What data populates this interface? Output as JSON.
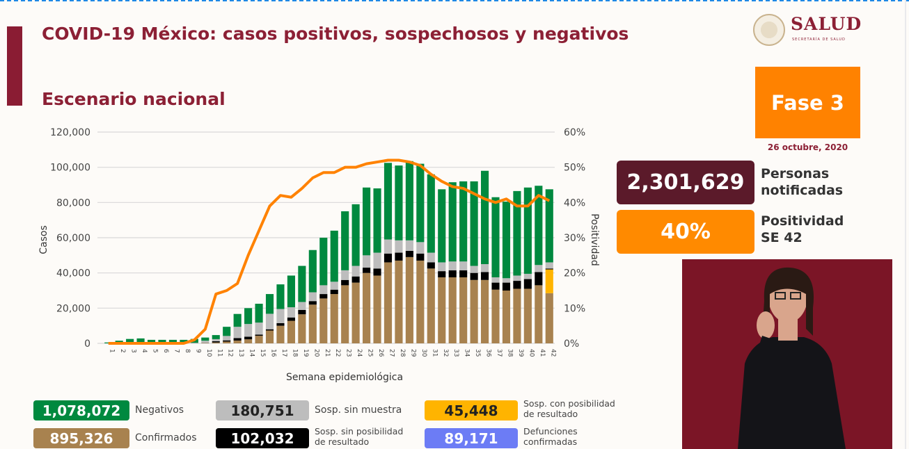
{
  "header": {
    "title": "COVID-19 México: casos positivos, sospechosos y negativos",
    "subtitle": "Escenario nacional",
    "logo_text": "SALUD",
    "logo_subtext": "SECRETARÍA DE SALUD"
  },
  "side": {
    "phase": "Fase 3",
    "date": "26 octubre, 2020",
    "notified_value": "2,301,629",
    "notified_label_1": "Personas",
    "notified_label_2": "notificadas",
    "positivity_value": "40%",
    "positivity_label_1": "Positividad",
    "positivity_label_2": "SE 42"
  },
  "legend": [
    {
      "value": "1,078,072",
      "label": "Negativos",
      "color": "#00893f",
      "text_color": "#ffffff"
    },
    {
      "value": "180,751",
      "label": "Sosp. sin muestra",
      "color": "#bdbdbd",
      "text_color": "#222222"
    },
    {
      "value": "45,448",
      "label": "Sosp. con posibilidad de resultado",
      "color": "#ffb400",
      "text_color": "#222222"
    },
    {
      "value": "895,326",
      "label": "Confirmados",
      "color": "#a8824f",
      "text_color": "#ffffff"
    },
    {
      "value": "102,032",
      "label": "Sosp. sin posibilidad de resultado",
      "color": "#000000",
      "text_color": "#ffffff"
    },
    {
      "value": "89,171",
      "label": "Defunciones confirmadas",
      "color": "#6c7cf5",
      "text_color": "#ffffff"
    }
  ],
  "chart_data": {
    "type": "bar",
    "stacked": true,
    "xlabel": "Semana epidemiológica",
    "ylabel": "Casos",
    "y2label": "Positividad",
    "ylim": [
      0,
      120000
    ],
    "y2lim": [
      0,
      60
    ],
    "yticks": [
      "0",
      "20,000",
      "40,000",
      "60,000",
      "80,000",
      "100,000",
      "120,000"
    ],
    "y2ticks": [
      "0%",
      "10%",
      "20%",
      "30%",
      "40%",
      "50%",
      "60%"
    ],
    "grid": true,
    "categories": [
      "1",
      "2",
      "3",
      "4",
      "5",
      "6",
      "7",
      "8",
      "9",
      "10",
      "11",
      "12",
      "13",
      "14",
      "15",
      "16",
      "17",
      "18",
      "19",
      "20",
      "21",
      "22",
      "23",
      "24",
      "25",
      "26",
      "27",
      "28",
      "29",
      "30",
      "31",
      "32",
      "33",
      "34",
      "35",
      "36",
      "37",
      "38",
      "39",
      "40",
      "41",
      "42"
    ],
    "series": [
      {
        "name": "Confirmados",
        "color": "#a8824f",
        "values": [
          0,
          0,
          0,
          0,
          0,
          0,
          0,
          0,
          100,
          200,
          500,
          1000,
          1600,
          2300,
          4300,
          7300,
          10000,
          12800,
          16500,
          22000,
          25500,
          28000,
          33000,
          34500,
          40000,
          38500,
          46000,
          47000,
          49000,
          47000,
          42500,
          37500,
          37500,
          37500,
          36000,
          36000,
          30500,
          30000,
          31000,
          31000,
          33000,
          28500
        ]
      },
      {
        "name": "Sosp. con posibilidad de resultado",
        "color": "#ffb400",
        "values": [
          0,
          0,
          0,
          0,
          0,
          0,
          0,
          0,
          0,
          0,
          0,
          0,
          0,
          0,
          0,
          0,
          0,
          0,
          0,
          0,
          0,
          0,
          0,
          0,
          0,
          0,
          0,
          0,
          0,
          0,
          0,
          0,
          0,
          0,
          0,
          0,
          0,
          0,
          0,
          0,
          0,
          13500
        ]
      },
      {
        "name": "Sosp. sin posibilidad de resultado",
        "color": "#000000",
        "values": [
          0,
          0,
          0,
          0,
          0,
          0,
          0,
          0,
          0,
          100,
          700,
          700,
          1400,
          1500,
          700,
          700,
          1500,
          1900,
          2500,
          2000,
          2500,
          2500,
          3000,
          3500,
          3000,
          4000,
          5000,
          4500,
          3500,
          4000,
          3500,
          3500,
          4000,
          4000,
          4000,
          4500,
          4000,
          4500,
          4500,
          5500,
          7500,
          500
        ]
      },
      {
        "name": "Sosp. sin muestra",
        "color": "#bdbdbd",
        "values": [
          0,
          0,
          0,
          0,
          0,
          0,
          0,
          0,
          200,
          1200,
          1200,
          2500,
          6400,
          7200,
          6800,
          8800,
          8000,
          5800,
          4500,
          5000,
          5000,
          4500,
          5500,
          6000,
          7000,
          9000,
          8000,
          7000,
          6000,
          6500,
          5500,
          5000,
          5000,
          5000,
          4000,
          4500,
          3000,
          2500,
          3000,
          3000,
          4000,
          3500
        ]
      },
      {
        "name": "Negativos",
        "color": "#00893f",
        "values": [
          500,
          1500,
          2500,
          2800,
          2000,
          2000,
          2000,
          2000,
          2200,
          1800,
          2300,
          5200,
          7300,
          9000,
          10700,
          11200,
          14000,
          18000,
          20500,
          24000,
          27000,
          29000,
          33500,
          35000,
          38500,
          36500,
          43500,
          42500,
          45000,
          44500,
          44500,
          41500,
          45000,
          45500,
          48000,
          53000,
          45500,
          43500,
          48000,
          49000,
          45000,
          41500
        ]
      }
    ],
    "line": {
      "name": "Positividad",
      "axis": "right",
      "color": "#ff8200",
      "values": [
        0,
        0,
        0,
        0,
        0,
        0,
        0,
        0,
        1,
        4,
        14,
        15,
        17,
        25,
        32,
        39,
        42,
        41.5,
        44,
        47,
        48.5,
        48.5,
        50,
        50,
        51,
        51.5,
        52,
        52,
        51.5,
        50.5,
        48,
        46,
        44.5,
        44,
        42.5,
        41,
        40,
        41,
        39,
        39,
        42,
        40.5
      ]
    }
  }
}
